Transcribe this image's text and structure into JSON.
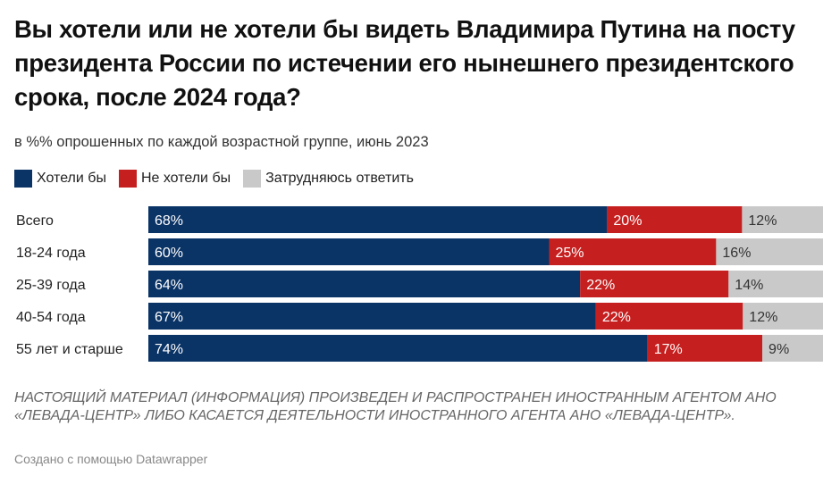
{
  "chart_data": {
    "type": "bar",
    "orientation": "horizontal",
    "stacked": true,
    "title": "Вы хотели или не хотели бы видеть Владимира Путина на посту президента России по истечении его нынешнего президентского срока, после 2024 года?",
    "subtitle": "в %% опрошенных по каждой возрастной группе, июнь 2023",
    "categories": [
      "Всего",
      "18-24 года",
      "25-39 года",
      "40-54 года",
      "55 лет и старше"
    ],
    "series": [
      {
        "name": "Хотели бы",
        "color": "#0a3366",
        "label_color": "#ffffff",
        "values": [
          68,
          60,
          64,
          67,
          74
        ]
      },
      {
        "name": "Не хотели бы",
        "color": "#c61f1f",
        "label_color": "#ffffff",
        "values": [
          20,
          25,
          22,
          22,
          17
        ]
      },
      {
        "name": "Затрудняюсь ответить",
        "color": "#c9c9c9",
        "label_color": "#333333",
        "values": [
          12,
          16,
          14,
          12,
          9
        ]
      }
    ],
    "value_suffix": "%",
    "legend_placement": "top-left",
    "grid": false
  },
  "note": "НАСТОЯЩИЙ МАТЕРИАЛ (ИНФОРМАЦИЯ) ПРОИЗВЕДЕН И РАСПРОСТРАНЕН ИНОСТРАННЫМ АГЕНТОМ АНО «ЛЕВАДА-ЦЕНТР» ЛИБО КАСАЕТСЯ ДЕЯТЕЛЬНОСТИ ИНОСТРАННОГО АГЕНТА АНО «ЛЕВАДА-ЦЕНТР».",
  "credit": "Создано с помощью Datawrapper"
}
